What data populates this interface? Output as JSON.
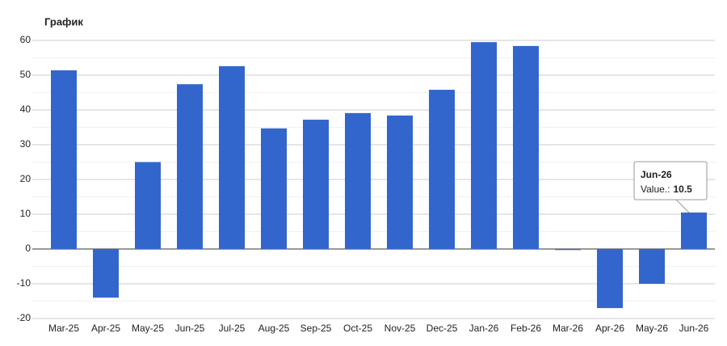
{
  "chart_data": {
    "type": "bar",
    "title": "График",
    "categories": [
      "Mar-25",
      "Apr-25",
      "May-25",
      "Jun-25",
      "Jul-25",
      "Aug-25",
      "Sep-25",
      "Oct-25",
      "Nov-25",
      "Dec-25",
      "Jan-26",
      "Feb-26",
      "Mar-26",
      "Apr-26",
      "May-26",
      "Jun-26"
    ],
    "values": [
      51.4,
      -14,
      25,
      47.4,
      52.6,
      34.7,
      37.2,
      39.1,
      38.4,
      45.8,
      59.5,
      58.4,
      -0.3,
      -17,
      -10,
      10.5
    ],
    "color": "#3366cc",
    "ylim": [
      -20,
      60
    ],
    "yticks": [
      -20,
      -10,
      0,
      10,
      20,
      30,
      40,
      50,
      60
    ],
    "grid": true,
    "minor_grid": true,
    "tooltip_label": "Value.:"
  }
}
